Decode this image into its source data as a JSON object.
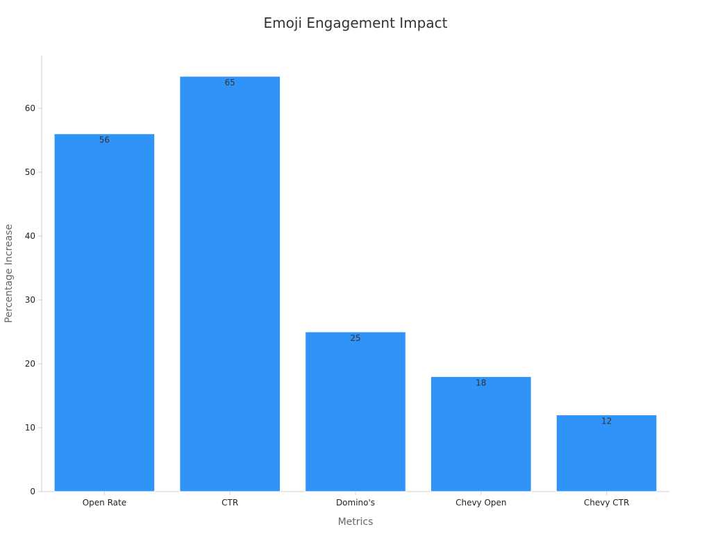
{
  "chart_data": {
    "type": "bar",
    "title": "Emoji Engagement Impact",
    "xlabel": "Metrics",
    "ylabel": "Percentage Increase",
    "categories": [
      "Open Rate",
      "CTR",
      "Domino's",
      "Chevy Open",
      "Chevy CTR"
    ],
    "values": [
      56,
      65,
      25,
      18,
      12
    ],
    "data_labels": [
      "56",
      "65",
      "25",
      "18",
      "12"
    ],
    "ylim": [
      0,
      68.25
    ],
    "yticks": [
      0,
      10,
      20,
      30,
      40,
      50,
      60
    ],
    "ytick_labels": [
      "0",
      "10",
      "20",
      "30",
      "40",
      "50",
      "60"
    ],
    "grid": false,
    "legend": "none",
    "colors": {
      "bar": "#2f93f7",
      "bar_edge": "#ffffff",
      "axis": "#cccccc",
      "title": "#333333",
      "axis_label": "#666666",
      "tick_label": "#222222",
      "data_label": "#333333"
    }
  }
}
